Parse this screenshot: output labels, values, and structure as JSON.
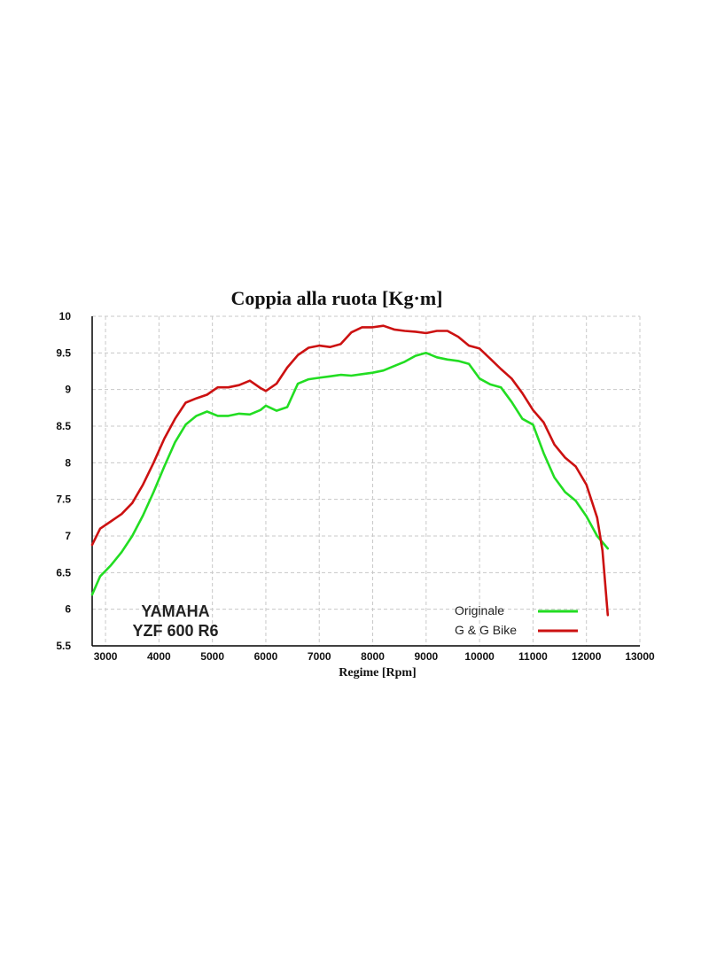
{
  "chart_data": {
    "type": "line",
    "title": "Coppia alla ruota [Kg·m]",
    "xlabel": "Regime [Rpm]",
    "ylabel": "",
    "xlim": [
      2750,
      13000
    ],
    "ylim": [
      5.5,
      10
    ],
    "x_ticks": [
      3000,
      4000,
      5000,
      6000,
      7000,
      8000,
      9000,
      10000,
      11000,
      12000,
      13000
    ],
    "x_tick_labels": [
      "3000",
      "4000",
      "5000",
      "6000",
      "7000",
      "8000",
      "9000",
      "10000",
      "11000",
      "12000",
      "13000"
    ],
    "y_ticks": [
      10,
      9.5,
      9,
      8.5,
      8,
      7.5,
      7,
      6.5,
      6,
      5.5
    ],
    "y_tick_labels": [
      "10",
      "9.5",
      "9",
      "8.5",
      "8",
      "7.5",
      "7",
      "6.5",
      "6",
      "5.5"
    ],
    "grid": true,
    "legend_position": "bottom-right",
    "annotations": [
      "YAMAHA",
      "YZF 600 R6"
    ],
    "series": [
      {
        "name": "Originale",
        "color": "#22dd22",
        "x": [
          2750,
          2900,
          3100,
          3300,
          3500,
          3700,
          3900,
          4100,
          4300,
          4500,
          4700,
          4900,
          5100,
          5300,
          5500,
          5700,
          5900,
          6000,
          6200,
          6400,
          6600,
          6800,
          7000,
          7200,
          7400,
          7600,
          7800,
          8000,
          8200,
          8400,
          8600,
          8800,
          9000,
          9200,
          9400,
          9600,
          9800,
          10000,
          10200,
          10400,
          10600,
          10800,
          11000,
          11200,
          11400,
          11600,
          11800,
          12000,
          12200,
          12400
        ],
        "values": [
          6.2,
          6.45,
          6.6,
          6.78,
          7.0,
          7.28,
          7.6,
          7.95,
          8.28,
          8.52,
          8.64,
          8.7,
          8.64,
          8.64,
          8.67,
          8.66,
          8.72,
          8.78,
          8.71,
          8.76,
          9.08,
          9.14,
          9.16,
          9.18,
          9.2,
          9.19,
          9.21,
          9.23,
          9.26,
          9.32,
          9.38,
          9.46,
          9.5,
          9.44,
          9.41,
          9.39,
          9.35,
          9.15,
          9.07,
          9.03,
          8.83,
          8.6,
          8.52,
          8.13,
          7.8,
          7.6,
          7.48,
          7.27,
          7.0,
          6.83
        ]
      },
      {
        "name": "G & G Bike",
        "color": "#cc1111",
        "x": [
          2750,
          2900,
          3100,
          3300,
          3500,
          3700,
          3900,
          4100,
          4300,
          4500,
          4700,
          4900,
          5100,
          5300,
          5500,
          5700,
          5900,
          6000,
          6200,
          6400,
          6600,
          6800,
          7000,
          7200,
          7400,
          7600,
          7800,
          8000,
          8200,
          8400,
          8600,
          8800,
          9000,
          9200,
          9400,
          9600,
          9800,
          10000,
          10200,
          10400,
          10600,
          10800,
          11000,
          11200,
          11400,
          11600,
          11800,
          12000,
          12200,
          12300,
          12400
        ],
        "values": [
          6.88,
          7.1,
          7.2,
          7.3,
          7.45,
          7.7,
          8.0,
          8.33,
          8.6,
          8.82,
          8.88,
          8.93,
          9.03,
          9.03,
          9.06,
          9.12,
          9.02,
          8.98,
          9.08,
          9.3,
          9.47,
          9.57,
          9.6,
          9.58,
          9.62,
          9.78,
          9.85,
          9.85,
          9.87,
          9.82,
          9.8,
          9.79,
          9.77,
          9.8,
          9.8,
          9.72,
          9.6,
          9.56,
          9.42,
          9.28,
          9.15,
          8.95,
          8.72,
          8.55,
          8.25,
          8.07,
          7.95,
          7.7,
          7.25,
          6.8,
          5.92
        ]
      }
    ]
  }
}
